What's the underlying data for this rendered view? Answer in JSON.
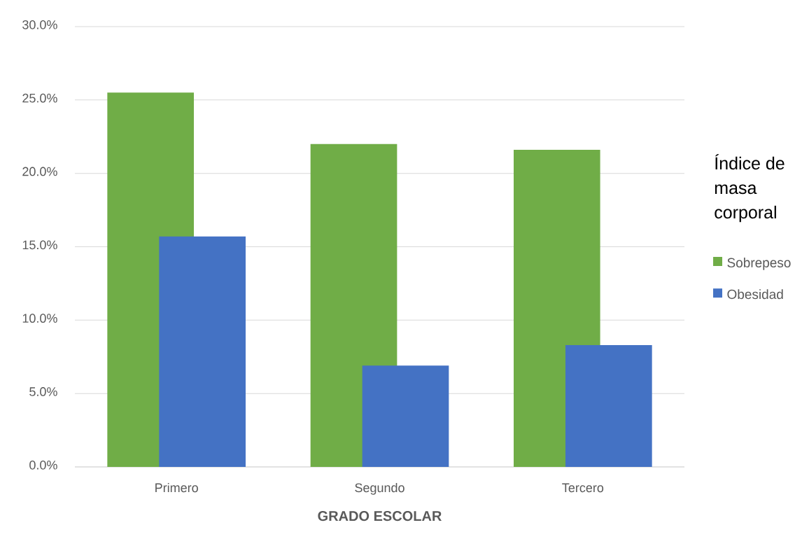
{
  "chart_data": {
    "type": "bar",
    "xlabel": "GRADO ESCOLAR",
    "legend_title": "Índice de masa corporal",
    "categories": [
      "Primero",
      "Segundo",
      "Tercero"
    ],
    "series": [
      {
        "name": "Sobrepeso",
        "color": "#70ad47",
        "values": [
          25.5,
          22.0,
          21.6
        ]
      },
      {
        "name": "Obesidad",
        "color": "#4472c4",
        "values": [
          15.7,
          6.9,
          8.3
        ]
      }
    ],
    "ylim": [
      0,
      30
    ],
    "yticks": [
      {
        "value": 0,
        "label": "0.0%"
      },
      {
        "value": 5,
        "label": "5.0%"
      },
      {
        "value": 10,
        "label": "10.0%"
      },
      {
        "value": 15,
        "label": "15.0%"
      },
      {
        "value": 20,
        "label": "20.0%"
      },
      {
        "value": 25,
        "label": "25.0%"
      },
      {
        "value": 30,
        "label": "30.0%"
      }
    ],
    "grid": "y",
    "legend": "right"
  }
}
